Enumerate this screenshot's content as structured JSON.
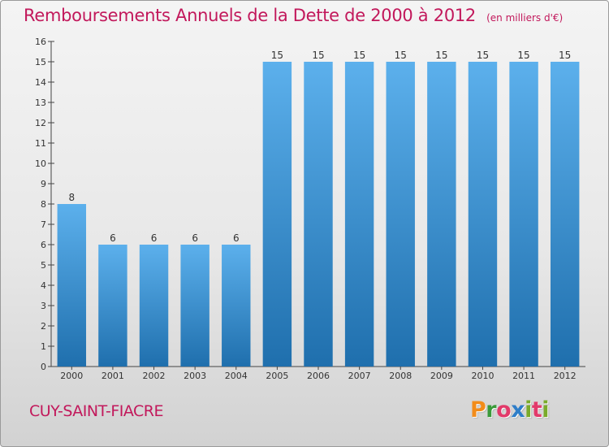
{
  "header": {
    "title": "Remboursements Annuels de la Dette de 2000 à 2012",
    "subtitle": "(en milliers d'€)"
  },
  "footer": {
    "commune": "CUY-SAINT-FIACRE",
    "brand_letters": [
      "P",
      "r",
      "o",
      "x",
      "i",
      "t",
      "i"
    ]
  },
  "colors": {
    "title": "#c2185b",
    "bar_top": "#5cb0ec",
    "bar_bottom": "#1f6fad",
    "brand": [
      "#f28c1a",
      "#3a9a3a",
      "#e23a6a",
      "#2f7ec8",
      "#7aab2b",
      "#e23a6a",
      "#7aab2b"
    ]
  },
  "chart_data": {
    "type": "bar",
    "categories": [
      "2000",
      "2001",
      "2002",
      "2003",
      "2004",
      "2005",
      "2006",
      "2007",
      "2008",
      "2009",
      "2010",
      "2011",
      "2012"
    ],
    "values": [
      8,
      6,
      6,
      6,
      6,
      15,
      15,
      15,
      15,
      15,
      15,
      15,
      15
    ],
    "y_ticks": [
      0,
      1,
      2,
      3,
      4,
      5,
      6,
      7,
      8,
      9,
      10,
      11,
      12,
      13,
      14,
      15,
      16
    ],
    "ylim": [
      0,
      16
    ],
    "grid": false
  }
}
